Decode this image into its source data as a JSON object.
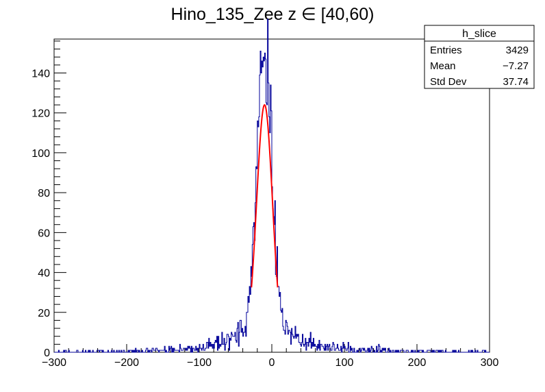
{
  "chart_data": {
    "type": "histogram",
    "title": "Hino_135_Zee z  ∈ [40,60)",
    "xlim": [
      -300,
      300
    ],
    "ylim": [
      0,
      157
    ],
    "x_ticks": [
      "−300",
      "−200",
      "−100",
      "0",
      "100",
      "200",
      "300"
    ],
    "y_ticks": [
      "0",
      "20",
      "40",
      "60",
      "80",
      "100",
      "120",
      "140"
    ],
    "grid": false,
    "stats_box": {
      "title": "h_slice",
      "rows": [
        {
          "label": "Entries",
          "value": "3429"
        },
        {
          "label": "Mean",
          "value": "−7.27"
        },
        {
          "label": "Std Dev",
          "value": "37.74"
        }
      ]
    },
    "histogram": {
      "color": "#000099",
      "bin_width": 1,
      "x": [
        -300,
        300
      ],
      "shape": {
        "peak_x": -10,
        "peak_y": 150,
        "core_sigma": 10,
        "tail_width": 30,
        "tail_height": 22
      }
    },
    "fit": {
      "type": "gaussian",
      "color": "#ff0000",
      "range": [
        -28,
        8
      ],
      "amplitude": 124,
      "mean": -10,
      "sigma": 11
    }
  }
}
